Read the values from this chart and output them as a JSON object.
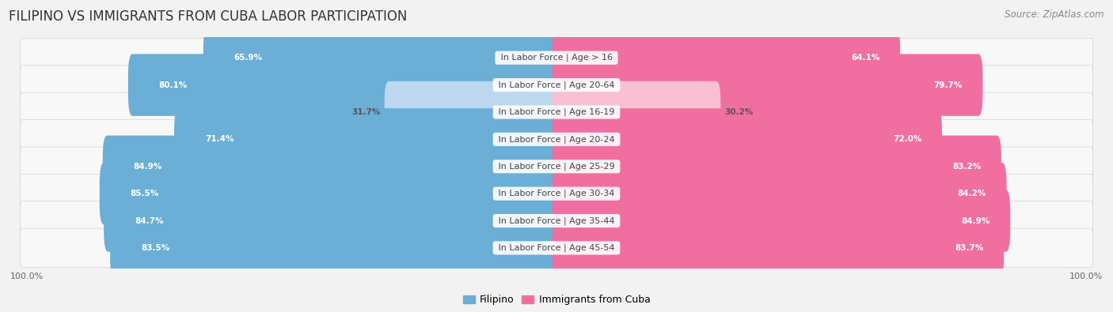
{
  "title": "FILIPINO VS IMMIGRANTS FROM CUBA LABOR PARTICIPATION",
  "source": "Source: ZipAtlas.com",
  "categories": [
    "In Labor Force | Age > 16",
    "In Labor Force | Age 20-64",
    "In Labor Force | Age 16-19",
    "In Labor Force | Age 20-24",
    "In Labor Force | Age 25-29",
    "In Labor Force | Age 30-34",
    "In Labor Force | Age 35-44",
    "In Labor Force | Age 45-54"
  ],
  "filipino_values": [
    65.9,
    80.1,
    31.7,
    71.4,
    84.9,
    85.5,
    84.7,
    83.5
  ],
  "cuba_values": [
    64.1,
    79.7,
    30.2,
    72.0,
    83.2,
    84.2,
    84.9,
    83.7
  ],
  "filipino_color": "#6BAED6",
  "cuba_color": "#F06FA0",
  "filipino_light_color": "#BDD7EE",
  "cuba_light_color": "#F9C0D4",
  "background_color": "#f2f2f2",
  "row_bg_color": "#e4e4e4",
  "row_inner_color": "#f8f8f8",
  "max_value": 100.0,
  "legend_filipino": "Filipino",
  "legend_cuba": "Immigrants from Cuba",
  "title_fontsize": 12,
  "source_fontsize": 8.5,
  "label_fontsize": 8,
  "value_fontsize": 7.5,
  "axis_label_fontsize": 8
}
